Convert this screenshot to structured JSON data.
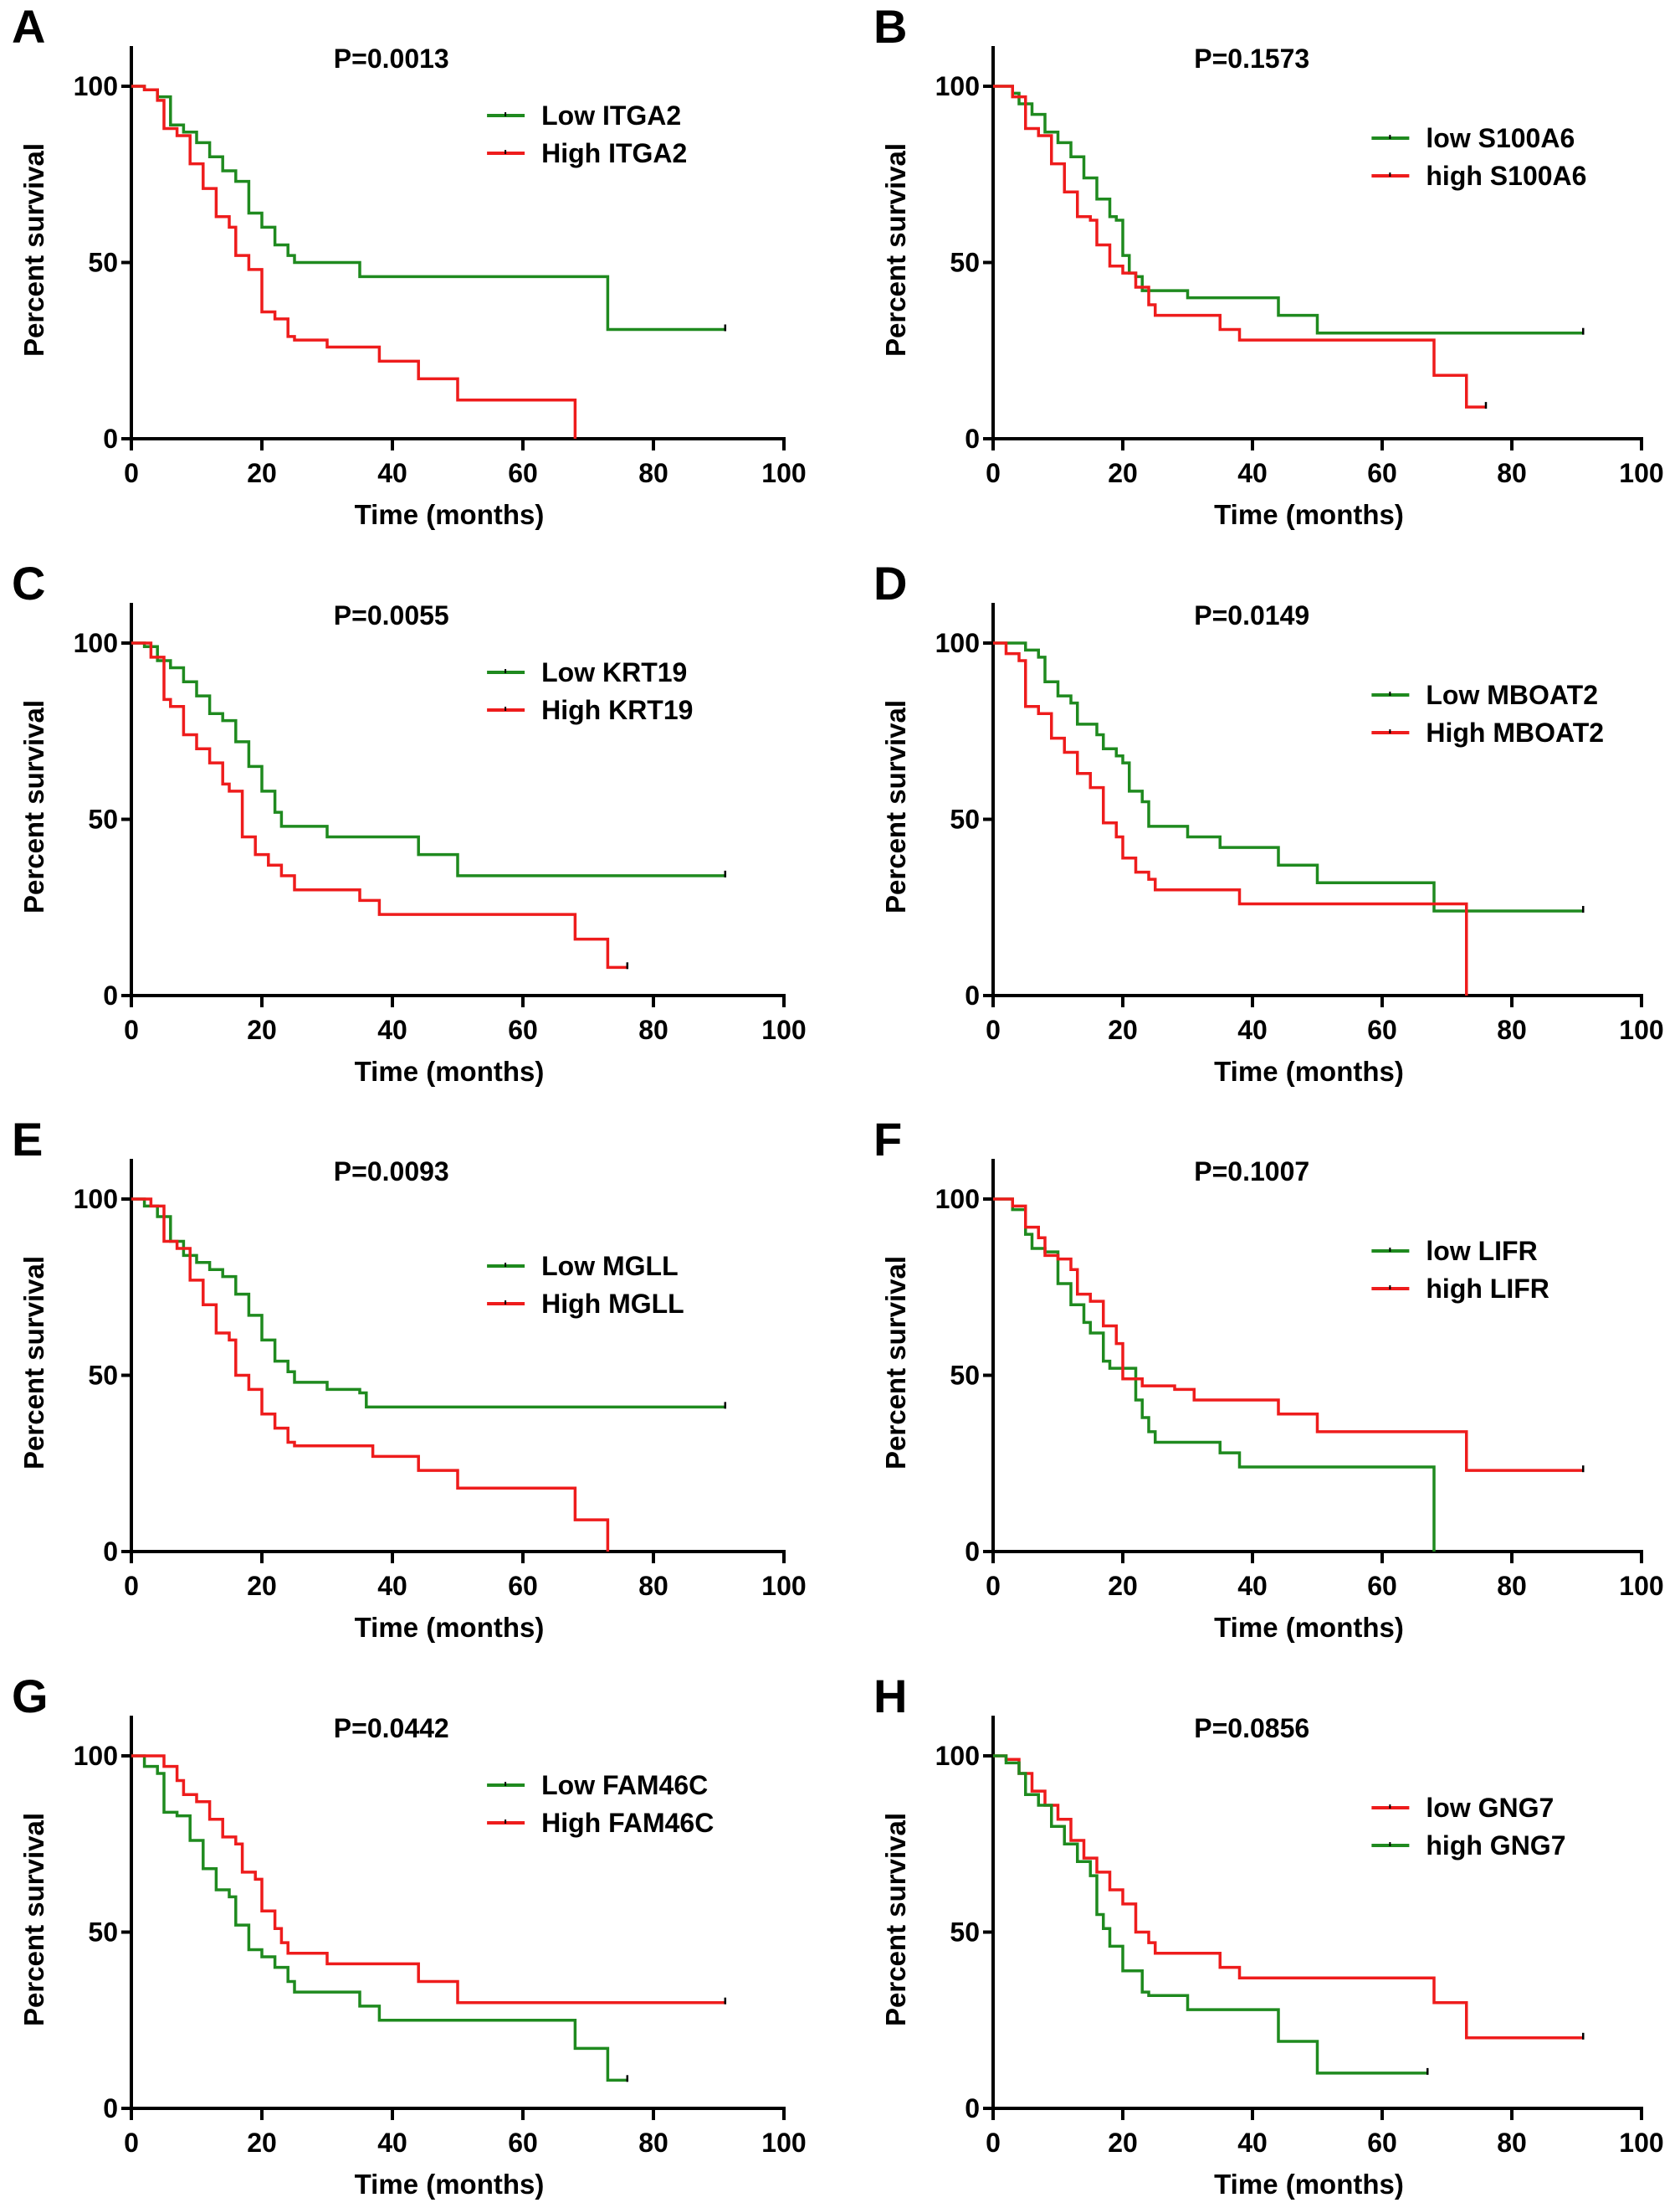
{
  "figure": {
    "colors": {
      "green": "#1f8a1f",
      "red": "#ee1c1c"
    },
    "xlabel": "Time (months)",
    "ylabel": "Percent survival"
  },
  "chart_data": [
    {
      "type": "line",
      "panel": "A",
      "title": "P=0.0013",
      "xlabel": "Time (months)",
      "ylabel": "Percent survival",
      "xlim": [
        0,
        100
      ],
      "ylim": [
        0,
        100
      ],
      "xticks": [
        0,
        20,
        40,
        60,
        80,
        100
      ],
      "yticks": [
        0,
        50,
        100
      ],
      "legend_position": "top-right",
      "grid": false,
      "series": [
        {
          "name": "Low ITGA2",
          "color": "green",
          "x": [
            0,
            2,
            4,
            6,
            8,
            10,
            12,
            14,
            16,
            18,
            20,
            22,
            24,
            25,
            35,
            73,
            91
          ],
          "y": [
            100,
            99,
            97,
            89,
            87,
            84,
            80,
            76,
            73,
            64,
            60,
            55,
            52,
            50,
            46,
            31,
            31
          ]
        },
        {
          "name": "High ITGA2",
          "color": "red",
          "x": [
            0,
            2,
            4,
            5,
            7,
            9,
            11,
            13,
            15,
            16,
            18,
            20,
            22,
            24,
            25,
            30,
            38,
            44,
            50,
            68,
            68
          ],
          "y": [
            100,
            99,
            96,
            88,
            86,
            78,
            71,
            63,
            60,
            52,
            48,
            36,
            34,
            29,
            28,
            26,
            22,
            17,
            11,
            11,
            0
          ]
        }
      ]
    },
    {
      "type": "line",
      "panel": "B",
      "title": "P=0.1573",
      "xlabel": "Time (months)",
      "ylabel": "Percent survival",
      "xlim": [
        0,
        100
      ],
      "ylim": [
        0,
        100
      ],
      "xticks": [
        0,
        20,
        40,
        60,
        80,
        100
      ],
      "yticks": [
        0,
        50,
        100
      ],
      "legend_position": "top-right",
      "grid": false,
      "series": [
        {
          "name": "low  S100A6",
          "color": "green",
          "x": [
            0,
            3,
            4,
            6,
            8,
            10,
            12,
            14,
            16,
            18,
            19,
            20,
            21,
            22,
            23,
            30,
            44,
            50,
            91
          ],
          "y": [
            100,
            98,
            95,
            92,
            87,
            84,
            80,
            74,
            68,
            63,
            62,
            52,
            47,
            46,
            42,
            40,
            35,
            30,
            30
          ]
        },
        {
          "name": "high S100A6",
          "color": "red",
          "x": [
            0,
            3,
            5,
            7,
            9,
            11,
            13,
            15,
            16,
            18,
            20,
            22,
            24,
            25,
            35,
            38,
            68,
            73,
            76
          ],
          "y": [
            100,
            97,
            88,
            86,
            78,
            70,
            63,
            62,
            55,
            49,
            47,
            43,
            38,
            35,
            31,
            28,
            18,
            9,
            9
          ]
        }
      ]
    },
    {
      "type": "line",
      "panel": "C",
      "title": "P=0.0055",
      "xlabel": "Time (months)",
      "ylabel": "Percent survival",
      "xlim": [
        0,
        100
      ],
      "ylim": [
        0,
        100
      ],
      "xticks": [
        0,
        20,
        40,
        60,
        80,
        100
      ],
      "yticks": [
        0,
        50,
        100
      ],
      "legend_position": "top-right",
      "grid": false,
      "series": [
        {
          "name": "Low  KRT19",
          "color": "green",
          "x": [
            0,
            2,
            4,
            6,
            8,
            10,
            12,
            14,
            16,
            18,
            20,
            22,
            23,
            30,
            44,
            50,
            91
          ],
          "y": [
            100,
            99,
            95,
            93,
            89,
            85,
            80,
            78,
            72,
            65,
            58,
            52,
            48,
            45,
            40,
            34,
            34
          ]
        },
        {
          "name": "High KRT19",
          "color": "red",
          "x": [
            0,
            3,
            5,
            6,
            8,
            10,
            12,
            14,
            15,
            17,
            19,
            21,
            23,
            25,
            35,
            38,
            68,
            73,
            76
          ],
          "y": [
            100,
            96,
            84,
            82,
            74,
            70,
            66,
            60,
            58,
            45,
            40,
            37,
            34,
            30,
            27,
            23,
            16,
            8,
            8
          ]
        }
      ]
    },
    {
      "type": "line",
      "panel": "D",
      "title": "P=0.0149",
      "xlabel": "Time (months)",
      "ylabel": "Percent survival",
      "xlim": [
        0,
        100
      ],
      "ylim": [
        0,
        100
      ],
      "xticks": [
        0,
        20,
        40,
        60,
        80,
        100
      ],
      "yticks": [
        0,
        50,
        100
      ],
      "legend_position": "top-right",
      "grid": false,
      "series": [
        {
          "name": "Low  MBOAT2",
          "color": "green",
          "x": [
            0,
            3,
            5,
            7,
            8,
            10,
            12,
            13,
            16,
            17,
            19,
            20,
            21,
            23,
            24,
            30,
            35,
            44,
            50,
            68,
            91
          ],
          "y": [
            100,
            100,
            98,
            96,
            89,
            85,
            83,
            77,
            74,
            70,
            68,
            66,
            58,
            55,
            48,
            45,
            42,
            37,
            32,
            24,
            24
          ]
        },
        {
          "name": "High MBOAT2",
          "color": "red",
          "x": [
            0,
            2,
            4,
            5,
            7,
            9,
            11,
            13,
            15,
            17,
            19,
            20,
            22,
            24,
            25,
            38,
            73,
            73
          ],
          "y": [
            100,
            97,
            95,
            82,
            80,
            73,
            69,
            63,
            59,
            49,
            45,
            39,
            35,
            33,
            30,
            26,
            26,
            0
          ]
        }
      ]
    },
    {
      "type": "line",
      "panel": "E",
      "title": "P=0.0093",
      "xlabel": "Time (months)",
      "ylabel": "Percent survival",
      "xlim": [
        0,
        100
      ],
      "ylim": [
        0,
        100
      ],
      "xticks": [
        0,
        20,
        40,
        60,
        80,
        100
      ],
      "yticks": [
        0,
        50,
        100
      ],
      "legend_position": "top-right",
      "grid": false,
      "series": [
        {
          "name": "Low  MGLL",
          "color": "green",
          "x": [
            0,
            2,
            4,
            6,
            8,
            10,
            12,
            14,
            16,
            18,
            20,
            22,
            24,
            25,
            30,
            35,
            36,
            91
          ],
          "y": [
            100,
            98,
            95,
            88,
            84,
            82,
            80,
            78,
            73,
            67,
            60,
            54,
            51,
            48,
            46,
            45,
            41,
            41
          ]
        },
        {
          "name": "High MGLL",
          "color": "red",
          "x": [
            0,
            3,
            5,
            7,
            9,
            11,
            13,
            15,
            16,
            18,
            20,
            22,
            24,
            25,
            37,
            44,
            50,
            68,
            73,
            73
          ],
          "y": [
            100,
            98,
            88,
            86,
            77,
            70,
            62,
            60,
            50,
            46,
            39,
            35,
            31,
            30,
            27,
            23,
            18,
            9,
            9,
            0
          ]
        }
      ]
    },
    {
      "type": "line",
      "panel": "F",
      "title": "P=0.1007",
      "xlabel": "Time (months)",
      "ylabel": "Percent survival",
      "xlim": [
        0,
        100
      ],
      "ylim": [
        0,
        100
      ],
      "xticks": [
        0,
        20,
        40,
        60,
        80,
        100
      ],
      "yticks": [
        0,
        50,
        100
      ],
      "legend_position": "top-right",
      "grid": false,
      "series": [
        {
          "name": "low  LIFR",
          "color": "green",
          "x": [
            0,
            3,
            5,
            6,
            8,
            10,
            12,
            14,
            15,
            17,
            18,
            20,
            22,
            23,
            24,
            25,
            35,
            38,
            68,
            68
          ],
          "y": [
            100,
            97,
            90,
            86,
            85,
            76,
            70,
            65,
            62,
            54,
            52,
            52,
            43,
            38,
            34,
            31,
            28,
            24,
            24,
            0
          ]
        },
        {
          "name": "high LIFR",
          "color": "red",
          "x": [
            0,
            3,
            5,
            7,
            8,
            10,
            12,
            13,
            15,
            17,
            19,
            20,
            23,
            28,
            31,
            44,
            50,
            73,
            91
          ],
          "y": [
            100,
            98,
            92,
            89,
            84,
            83,
            80,
            73,
            71,
            64,
            59,
            49,
            47,
            46,
            43,
            39,
            34,
            23,
            23
          ]
        }
      ]
    },
    {
      "type": "line",
      "panel": "G",
      "title": "P=0.0442",
      "xlabel": "Time (months)",
      "ylabel": "Percent survival",
      "xlim": [
        0,
        100
      ],
      "ylim": [
        0,
        100
      ],
      "xticks": [
        0,
        20,
        40,
        60,
        80,
        100
      ],
      "yticks": [
        0,
        50,
        100
      ],
      "legend_position": "top-right",
      "grid": false,
      "series": [
        {
          "name": "Low FAM46C",
          "color": "green",
          "x": [
            0,
            2,
            4,
            5,
            7,
            9,
            11,
            13,
            15,
            16,
            18,
            20,
            22,
            24,
            25,
            35,
            38,
            68,
            73,
            76
          ],
          "y": [
            100,
            97,
            95,
            84,
            83,
            76,
            68,
            62,
            60,
            52,
            45,
            43,
            40,
            36,
            33,
            29,
            25,
            17,
            8,
            8
          ]
        },
        {
          "name": "High FAM46C",
          "color": "red",
          "x": [
            0,
            3,
            5,
            7,
            8,
            10,
            12,
            14,
            16,
            17,
            19,
            20,
            22,
            23,
            24,
            30,
            44,
            50,
            91
          ],
          "y": [
            100,
            100,
            97,
            93,
            89,
            87,
            82,
            77,
            75,
            67,
            65,
            56,
            51,
            47,
            44,
            41,
            36,
            30,
            30
          ]
        }
      ]
    },
    {
      "type": "line",
      "panel": "H",
      "title": "P=0.0856",
      "xlabel": "Time (months)",
      "ylabel": "Percent survival",
      "xlim": [
        0,
        100
      ],
      "ylim": [
        0,
        100
      ],
      "xticks": [
        0,
        20,
        40,
        60,
        80,
        100
      ],
      "yticks": [
        0,
        50,
        100
      ],
      "legend_position": "top-right",
      "grid": false,
      "series": [
        {
          "name": "low  GNG7",
          "color": "red",
          "x": [
            0,
            2,
            4,
            6,
            8,
            10,
            12,
            14,
            16,
            18,
            20,
            22,
            24,
            25,
            35,
            38,
            68,
            73,
            91
          ],
          "y": [
            100,
            99,
            95,
            90,
            86,
            82,
            76,
            71,
            67,
            62,
            58,
            50,
            47,
            44,
            40,
            37,
            30,
            20,
            20
          ]
        },
        {
          "name": "high GNG7",
          "color": "green",
          "x": [
            0,
            2,
            4,
            5,
            7,
            9,
            11,
            13,
            15,
            16,
            17,
            18,
            20,
            23,
            24,
            30,
            44,
            50,
            67
          ],
          "y": [
            100,
            98,
            95,
            89,
            86,
            80,
            75,
            70,
            66,
            55,
            51,
            46,
            39,
            33,
            32,
            28,
            19,
            10,
            10
          ]
        }
      ]
    }
  ]
}
